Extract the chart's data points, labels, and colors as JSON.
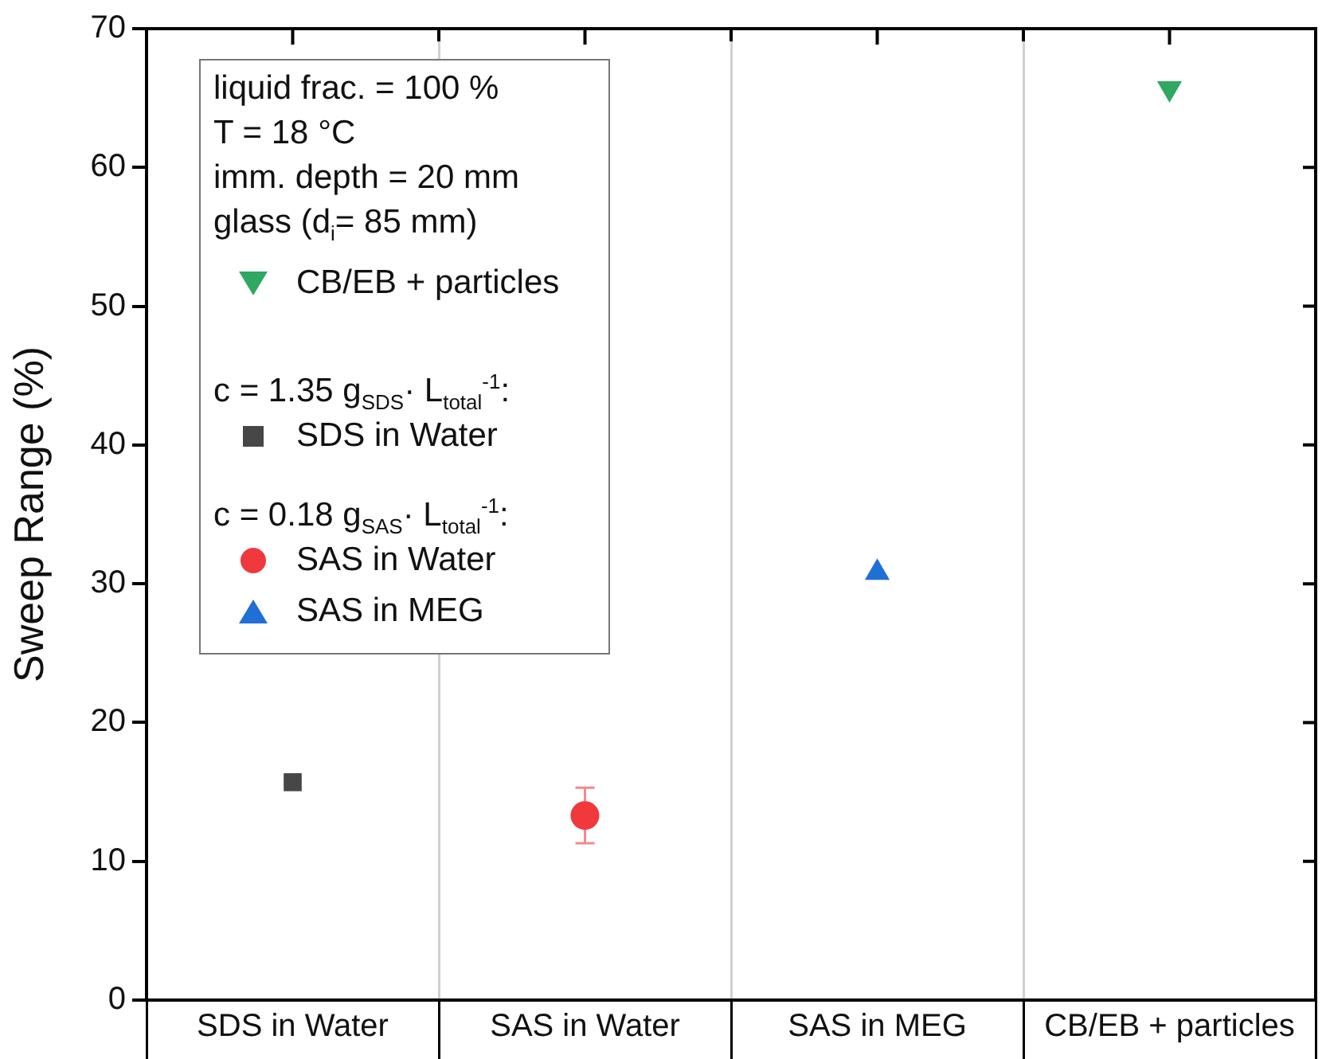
{
  "chart_data": {
    "type": "scatter",
    "categories": [
      "SDS in Water",
      "SAS in Water",
      "SAS in MEG",
      "CB/EB + particles"
    ],
    "ylabel": "Sweep Range (%)",
    "ylim": [
      0,
      70
    ],
    "yticks": [
      0,
      10,
      20,
      30,
      40,
      50,
      60,
      70
    ],
    "grid": "x",
    "legend": "top left",
    "annotations": [
      "liquid frac. = 100 %",
      "T = 18 °C",
      "imm. depth = 20 mm",
      "glass (d$_{i}$= 85 mm)",
      "c = 1.35 g$_{SDS}$· L$_{total}$$^{-1}$:",
      "c = 0.18 g$_{SAS}$· L$_{total}$$^{-1}$:"
    ],
    "series": [
      {
        "name": "CB/EB  + particles",
        "color": "#2fa862",
        "marker": "triangle-down",
        "values": [
          null,
          null,
          null,
          65.7
        ]
      },
      {
        "name": "SDS in Water",
        "color": "#474747",
        "marker": "square",
        "values": [
          15.7,
          null,
          null,
          null
        ]
      },
      {
        "name": "SAS in Water",
        "color": "#f0383d",
        "marker": "circle",
        "values": [
          null,
          13.3,
          null,
          null
        ],
        "errors": [
          null,
          [
            11.3,
            15.3
          ],
          null,
          null
        ]
      },
      {
        "name": "SAS in MEG",
        "color": "#1f6fd6",
        "marker": "triangle",
        "values": [
          null,
          null,
          30.8,
          null
        ]
      }
    ]
  }
}
